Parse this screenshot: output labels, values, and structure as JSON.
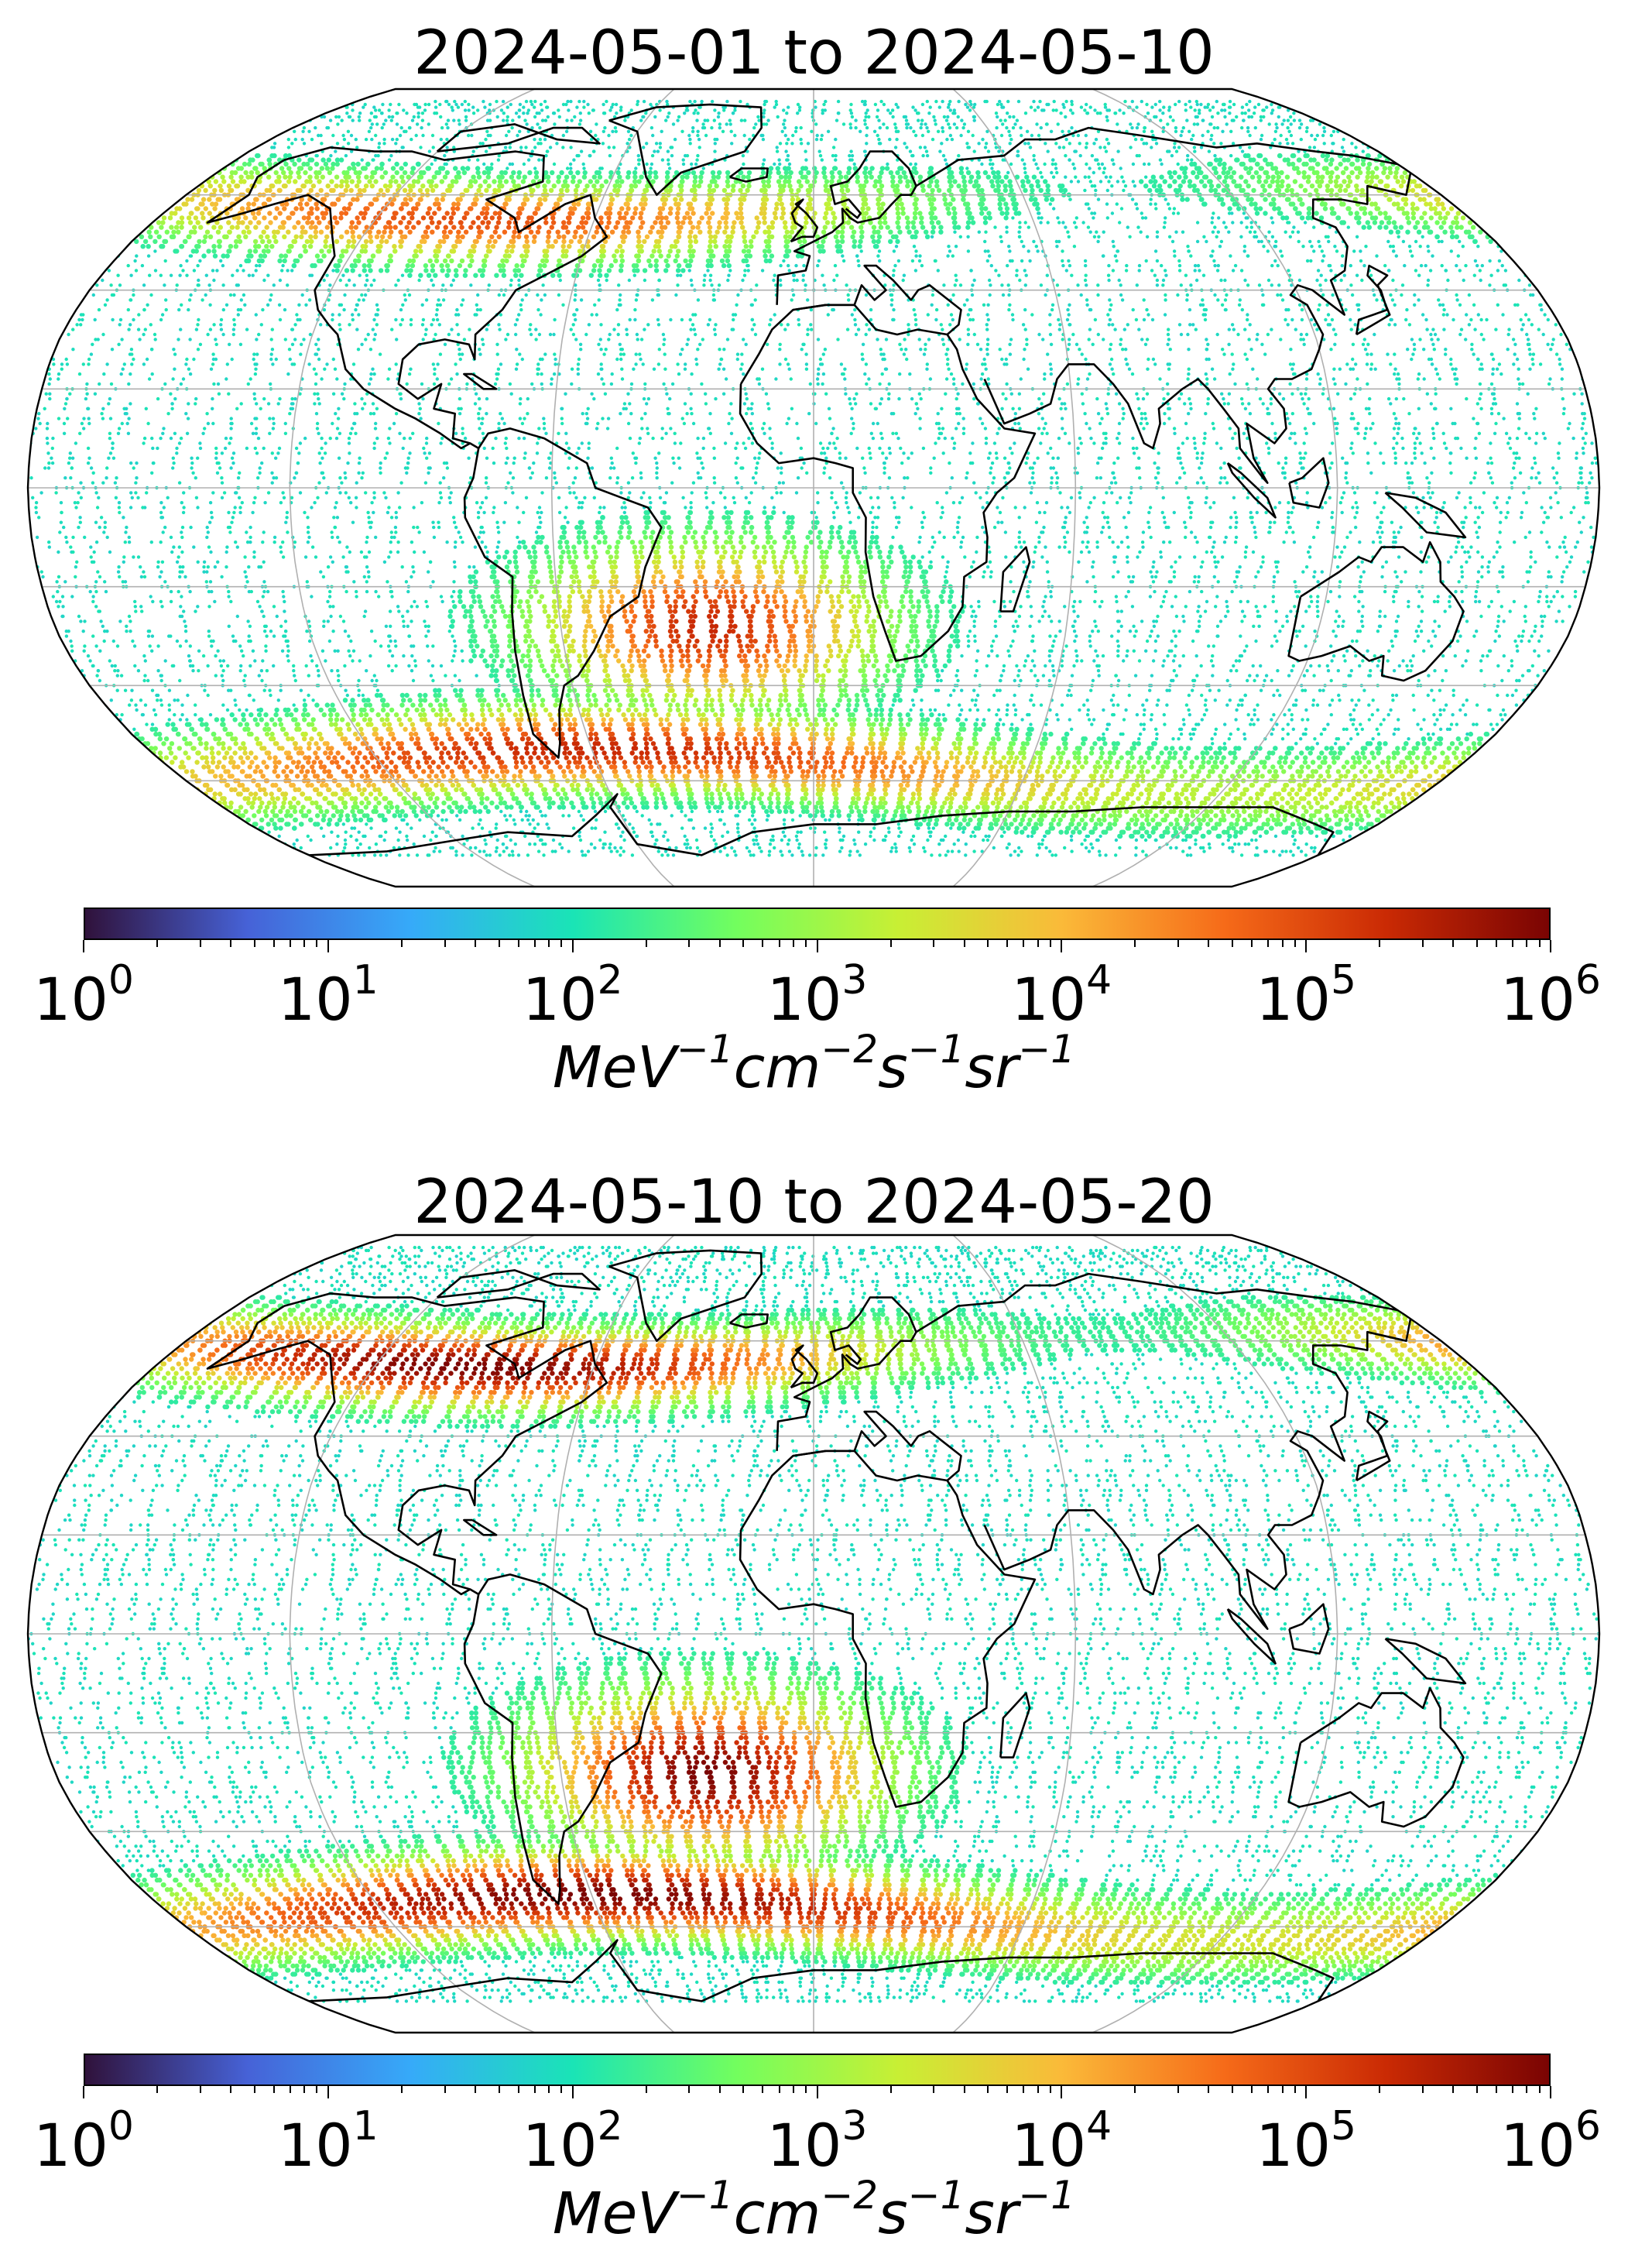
{
  "panels": [
    {
      "title": "2024-05-01 to 2024-05-10",
      "colorbar": {
        "ticks": [
          {
            "base": "10",
            "exp": "0"
          },
          {
            "base": "10",
            "exp": "1"
          },
          {
            "base": "10",
            "exp": "2"
          },
          {
            "base": "10",
            "exp": "3"
          },
          {
            "base": "10",
            "exp": "4"
          },
          {
            "base": "10",
            "exp": "5"
          },
          {
            "base": "10",
            "exp": "6"
          }
        ],
        "unit": {
          "p1": "MeV",
          "e1": "−1",
          "p2": "cm",
          "e2": "−2",
          "p3": "s",
          "e3": "−1",
          "p4": "sr",
          "e4": "−1"
        }
      },
      "intensity": {
        "north_band": 0.75,
        "south_band": 0.85,
        "saa": 0.85
      }
    },
    {
      "title": "2024-05-10 to 2024-05-20",
      "colorbar": {
        "ticks": [
          {
            "base": "10",
            "exp": "0"
          },
          {
            "base": "10",
            "exp": "1"
          },
          {
            "base": "10",
            "exp": "2"
          },
          {
            "base": "10",
            "exp": "3"
          },
          {
            "base": "10",
            "exp": "4"
          },
          {
            "base": "10",
            "exp": "5"
          },
          {
            "base": "10",
            "exp": "6"
          }
        ],
        "unit": {
          "p1": "MeV",
          "e1": "−1",
          "p2": "cm",
          "e2": "−2",
          "p3": "s",
          "e3": "−1",
          "p4": "sr",
          "e4": "−1"
        }
      },
      "intensity": {
        "north_band": 1.0,
        "south_band": 1.0,
        "saa": 1.0
      }
    }
  ],
  "colormap": {
    "name": "turbo",
    "stops": [
      "#30123b",
      "#4662d7",
      "#36aaf9",
      "#1ae4b6",
      "#72fe5e",
      "#c8ef34",
      "#faba39",
      "#f66b19",
      "#ca2a04",
      "#7a0403"
    ]
  },
  "map": {
    "projection": "Robinson",
    "coastlines": true,
    "gridlines": true
  }
}
